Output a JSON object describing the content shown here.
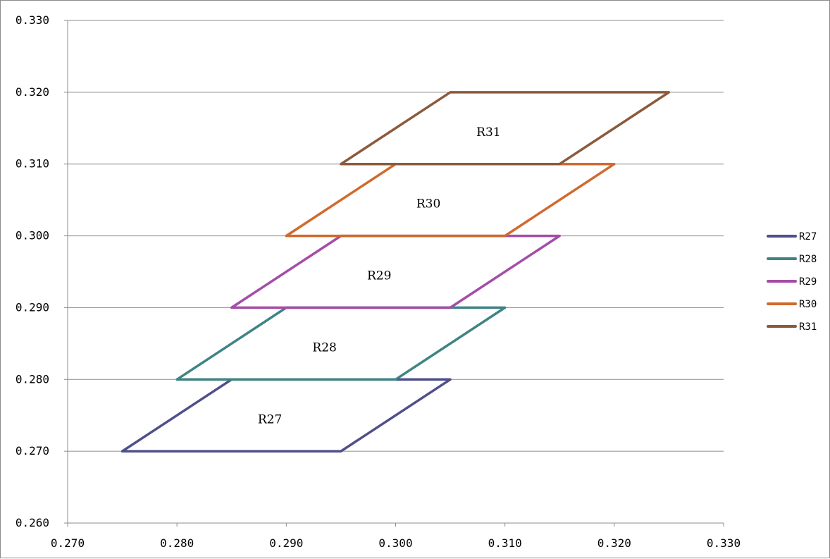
{
  "chart_data": {
    "type": "line",
    "title": "",
    "xlabel": "",
    "ylabel": "",
    "xlim": [
      0.27,
      0.33
    ],
    "ylim": [
      0.26,
      0.33
    ],
    "x_ticks": [
      "0.270",
      "0.280",
      "0.290",
      "0.300",
      "0.310",
      "0.320",
      "0.330"
    ],
    "y_ticks": [
      "0.260",
      "0.270",
      "0.280",
      "0.290",
      "0.300",
      "0.310",
      "0.320",
      "0.330"
    ],
    "grid": "horizontal",
    "legend_position": "right",
    "series": [
      {
        "name": "R27",
        "label": "R27",
        "color": "#4f4f8a",
        "x": [
          0.275,
          0.295,
          0.305,
          0.285,
          0.275
        ],
        "y": [
          0.27,
          0.27,
          0.28,
          0.28,
          0.27
        ],
        "label_at": [
          0.2885,
          0.2745
        ]
      },
      {
        "name": "R28",
        "label": "R28",
        "color": "#3f8484",
        "x": [
          0.28,
          0.3,
          0.31,
          0.29,
          0.28
        ],
        "y": [
          0.28,
          0.28,
          0.29,
          0.29,
          0.28
        ],
        "label_at": [
          0.2935,
          0.2845
        ]
      },
      {
        "name": "R29",
        "label": "R29",
        "color": "#a54ca8",
        "x": [
          0.285,
          0.305,
          0.315,
          0.295,
          0.285
        ],
        "y": [
          0.29,
          0.29,
          0.3,
          0.3,
          0.29
        ],
        "label_at": [
          0.2985,
          0.2945
        ]
      },
      {
        "name": "R30",
        "label": "R30",
        "color": "#d06a2c",
        "x": [
          0.29,
          0.31,
          0.32,
          0.3,
          0.29
        ],
        "y": [
          0.3,
          0.3,
          0.31,
          0.31,
          0.3
        ],
        "label_at": [
          0.303,
          0.3045
        ]
      },
      {
        "name": "R31",
        "label": "R31",
        "color": "#8b5a3c",
        "x": [
          0.295,
          0.315,
          0.325,
          0.305,
          0.295
        ],
        "y": [
          0.31,
          0.31,
          0.32,
          0.32,
          0.31
        ],
        "label_at": [
          0.3085,
          0.3145
        ]
      }
    ]
  }
}
